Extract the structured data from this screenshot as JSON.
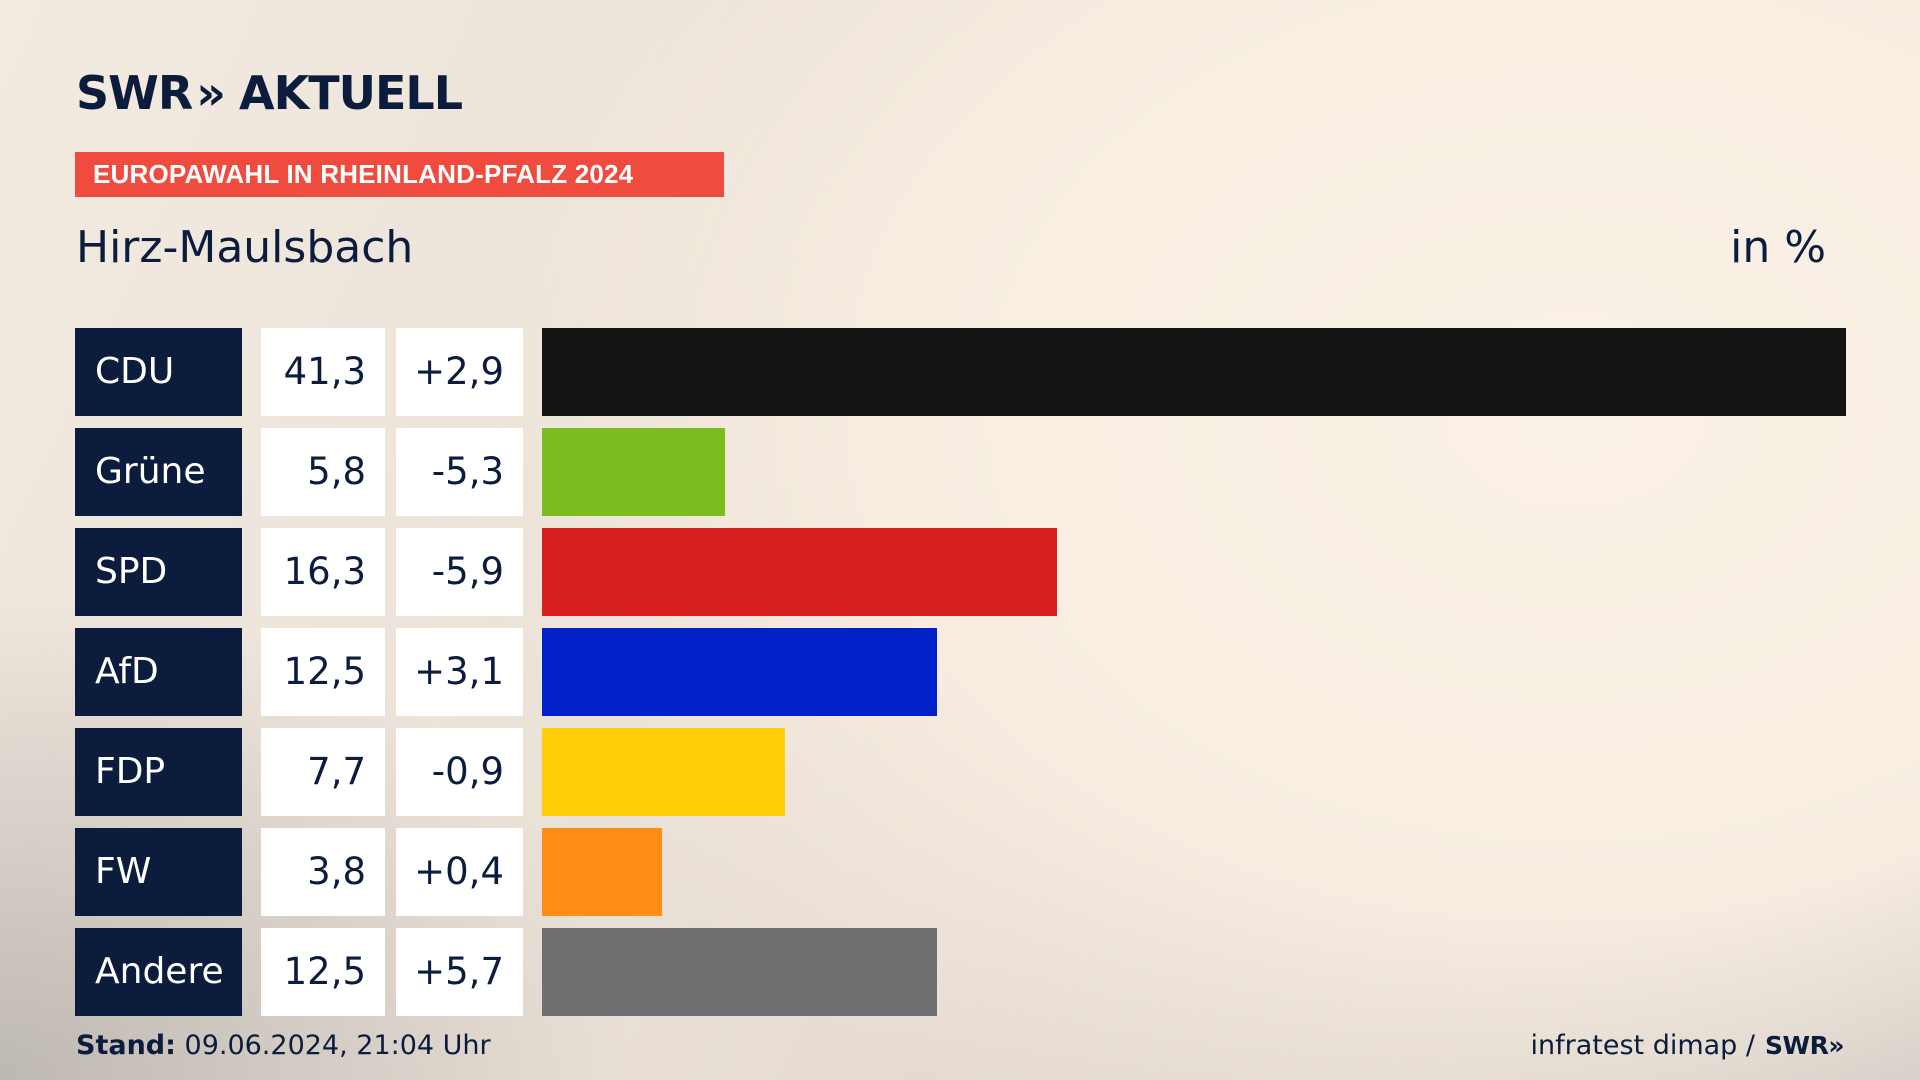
{
  "header": {
    "brand": "SWR",
    "brand_chevrons": "»",
    "brand_suffix": "AKTUELL",
    "banner": "EUROPAWAHL IN RHEINLAND-PFALZ 2024",
    "location": "Hirz-Maulsbach",
    "unit": "in %"
  },
  "footer": {
    "stand_label": "Stand:",
    "stand_value": "09.06.2024, 21:04 Uhr",
    "source": "infratest dimap /",
    "source_logo": "SWR»"
  },
  "colors": {
    "navy": "#0c1c3d",
    "banner": "#ef4b3f",
    "CDU": "#141414",
    "Grüne": "#7bbd1e",
    "SPD": "#d81f1f",
    "AfD": "#0020c8",
    "FDP": "#ffd00a",
    "FW": "#ff8c14",
    "Andere": "#6e6f71"
  },
  "chart_data": {
    "type": "bar",
    "orientation": "horizontal",
    "categories": [
      "CDU",
      "Grüne",
      "SPD",
      "AfD",
      "FDP",
      "FW",
      "Andere"
    ],
    "values": [
      41.3,
      5.8,
      16.3,
      12.5,
      7.7,
      3.8,
      12.5
    ],
    "value_labels": [
      "41,3",
      "5,8",
      "16,3",
      "12,5",
      "7,7",
      "3,8",
      "12,5"
    ],
    "diffs": [
      2.9,
      -5.3,
      -5.9,
      3.1,
      -0.9,
      0.4,
      5.7
    ],
    "diff_labels": [
      "+2,9",
      "-5,3",
      "-5,9",
      "+3,1",
      "-0,9",
      "+0,4",
      "+5,7"
    ],
    "title": "Hirz-Maulsbach",
    "unit": "in %",
    "xlabel": "",
    "ylabel": "",
    "xlim": [
      0,
      41.3
    ],
    "grid": false
  }
}
